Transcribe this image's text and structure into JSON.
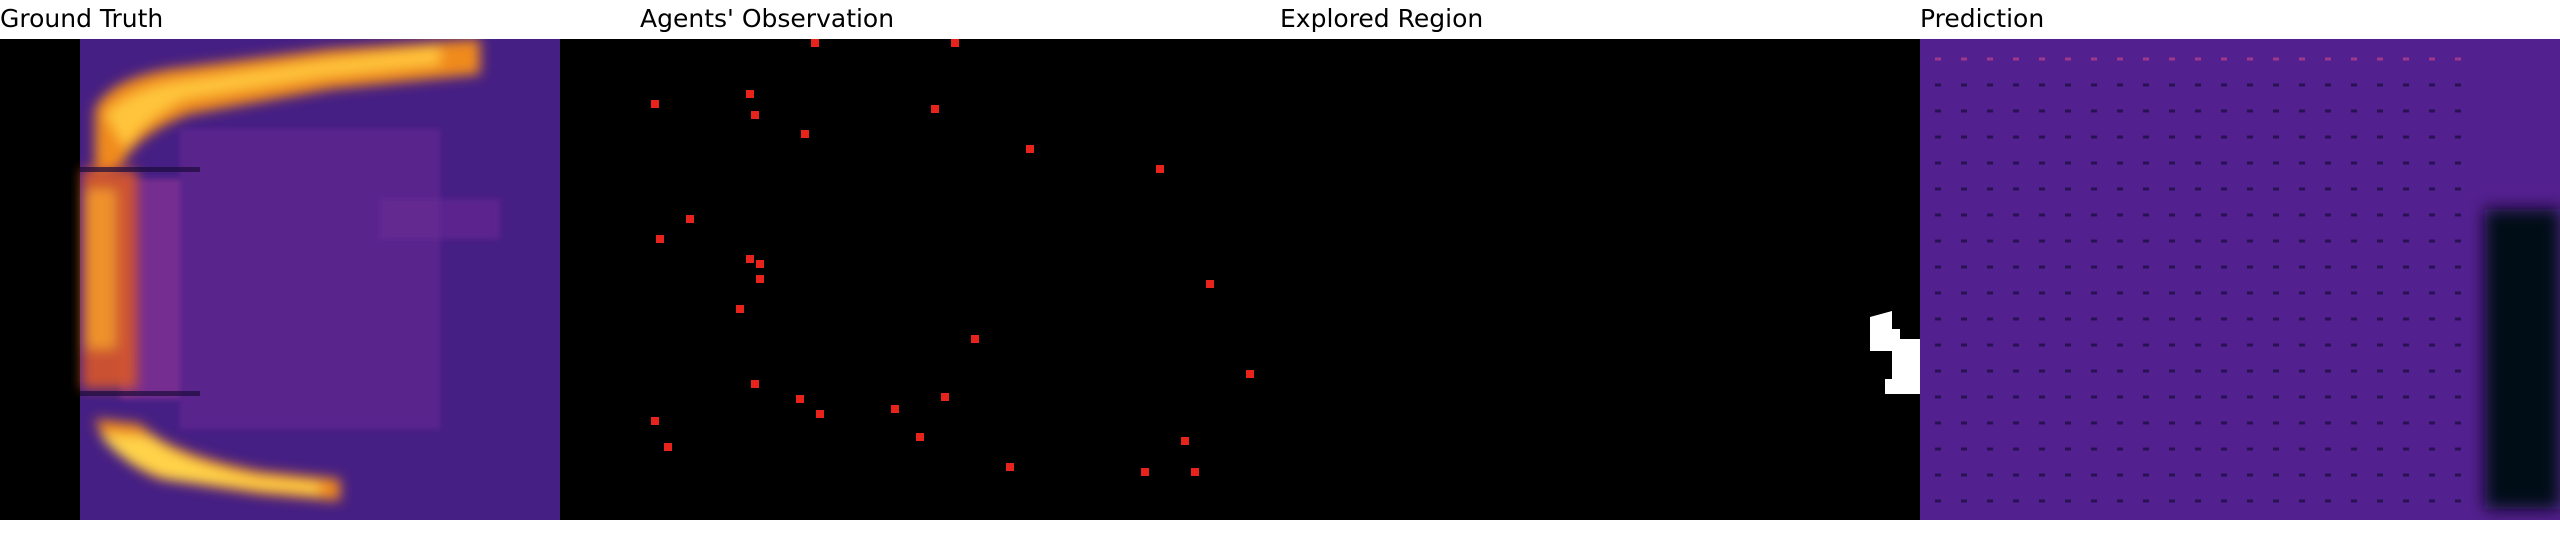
{
  "panels": {
    "ground_truth": {
      "title": "Ground Truth"
    },
    "observation": {
      "title": "Agents' Observation"
    },
    "explored": {
      "title": "Explored Region"
    },
    "prediction": {
      "title": "Prediction"
    }
  },
  "colors": {
    "background": "#ffffff",
    "panel_black": "#000000",
    "heat_low": "#3a1470",
    "heat_mid": "#7a2a8c",
    "heat_high": "#f08a1c",
    "heat_peak": "#ffd34a",
    "agent_marker": "#e8231c",
    "explored_fill": "#ffffff"
  }
}
